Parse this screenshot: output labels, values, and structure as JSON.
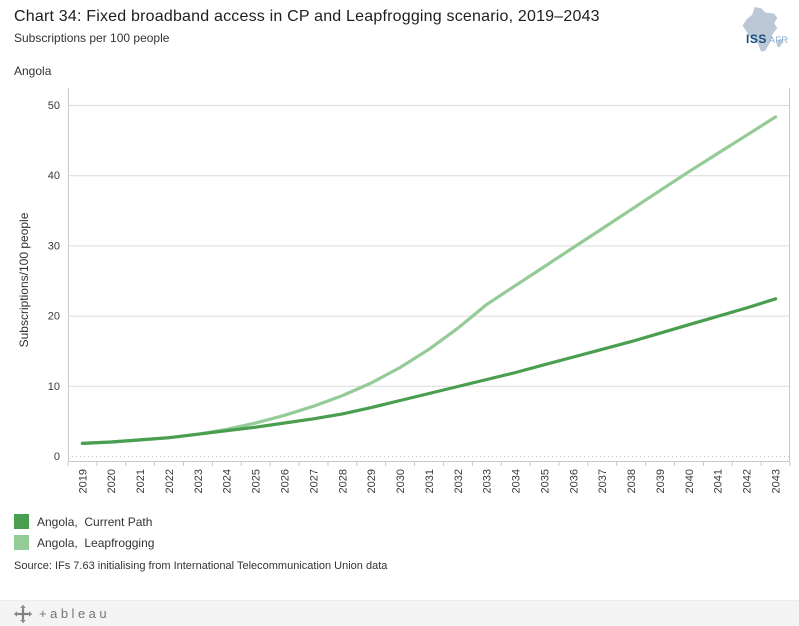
{
  "header": {
    "title": "Chart 34: Fixed broadband access in CP and Leapfrogging scenario, 2019–2043",
    "subtitle": "Subscriptions per 100 people",
    "logo_primary": "ISS",
    "logo_secondary": "AFR"
  },
  "region_label": "Angola",
  "chart_data": {
    "type": "line",
    "title": "Chart 34: Fixed broadband access in CP and Leapfrogging scenario, 2019–2043",
    "subtitle": "Subscriptions per 100 people",
    "xlabel": "",
    "ylabel": "Subscriptions/100 people",
    "ylim": [
      0,
      52
    ],
    "yticks": [
      0,
      10,
      20,
      30,
      40,
      50
    ],
    "grid": true,
    "legend_position": "bottom-left",
    "x": [
      2019,
      2020,
      2021,
      2022,
      2023,
      2024,
      2025,
      2026,
      2027,
      2028,
      2029,
      2030,
      2031,
      2032,
      2033,
      2034,
      2035,
      2036,
      2037,
      2038,
      2039,
      2040,
      2041,
      2042,
      2043
    ],
    "series": [
      {
        "name": "Angola,  Current Path",
        "color": "#4a9e50",
        "values": [
          1.8,
          2.0,
          2.3,
          2.6,
          3.1,
          3.6,
          4.1,
          4.7,
          5.3,
          6.0,
          6.9,
          7.9,
          8.9,
          9.9,
          10.9,
          11.9,
          13.0,
          14.1,
          15.2,
          16.3,
          17.5,
          18.7,
          19.9,
          21.1,
          22.4
        ]
      },
      {
        "name": "Angola,  Leapfrogging",
        "color": "#94cb96",
        "values": [
          1.8,
          2.0,
          2.3,
          2.6,
          3.1,
          3.8,
          4.7,
          5.8,
          7.1,
          8.6,
          10.4,
          12.6,
          15.2,
          18.2,
          21.6,
          24.3,
          27.0,
          29.7,
          32.4,
          35.1,
          37.8,
          40.5,
          43.1,
          45.7,
          48.3
        ]
      }
    ]
  },
  "source": "Source: IFs 7.63 initialising from International Telecommunication Union data",
  "footer": {
    "logo_text": "+ableau"
  }
}
